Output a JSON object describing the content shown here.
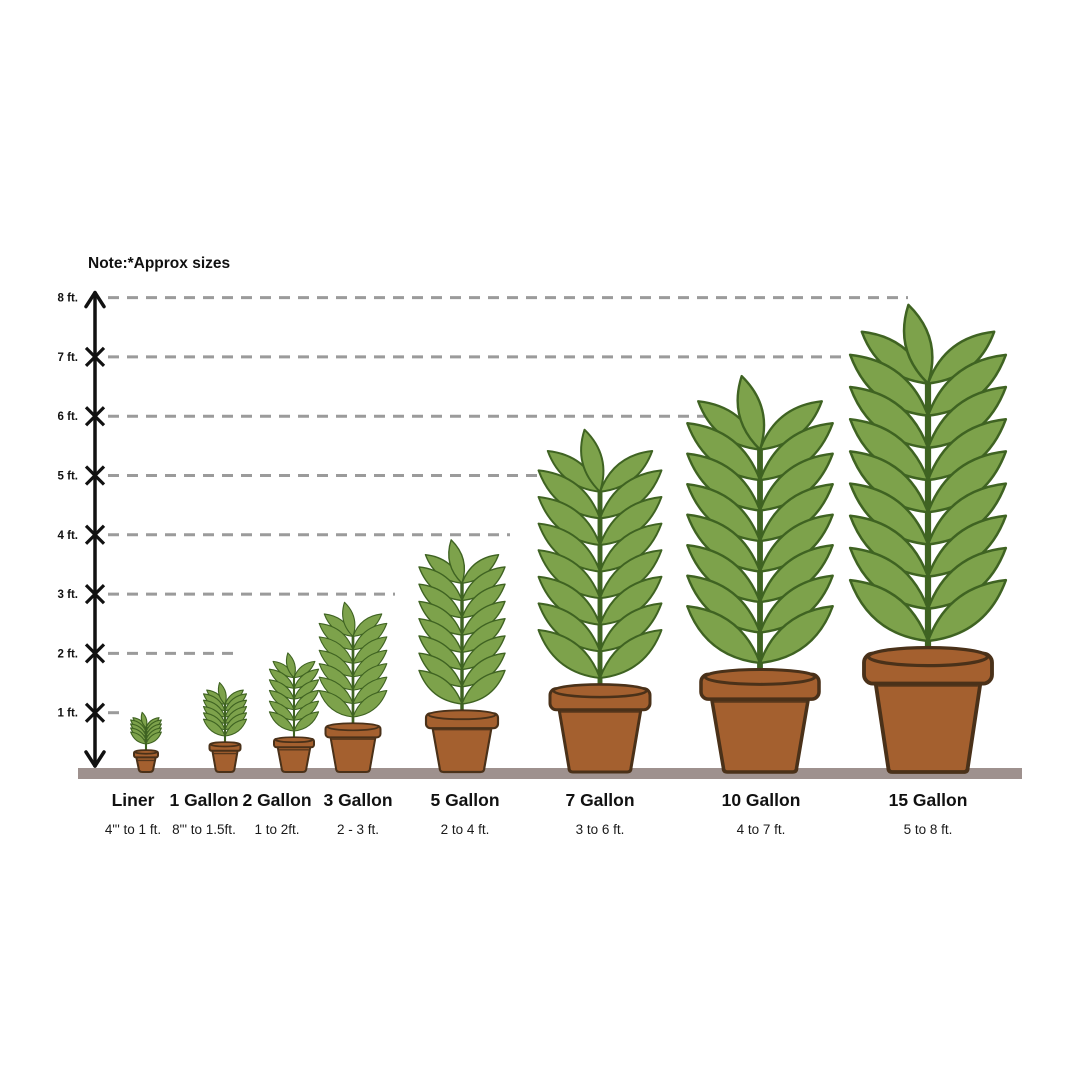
{
  "note": "Note:*Approx sizes",
  "chart_data": {
    "type": "bar",
    "variant": "plant-pot-size-pictogram",
    "title": "Note:*Approx sizes",
    "categories": [
      "Liner",
      "1 Gallon",
      "2 Gallon",
      "3 Gallon",
      "5 Gallon",
      "7 Gallon",
      "10 Gallon",
      "15 Gallon"
    ],
    "size_ranges": [
      "4\"' to 1 ft.",
      "8\"' to 1.5ft.",
      "1 to 2ft.",
      "2 - 3 ft.",
      "2 to 4 ft.",
      "3 to 6 ft.",
      "4 to 7 ft.",
      "5 to 8 ft."
    ],
    "depicted_height_ft": [
      1,
      1.5,
      2,
      2.85,
      3.9,
      5.75,
      6.65,
      7.85
    ],
    "yaxis": {
      "unit": "ft.",
      "range": [
        0,
        8
      ],
      "ticks": [
        1,
        2,
        3,
        4,
        5,
        6,
        7,
        8
      ],
      "tick_labels": [
        "1 ft.",
        "2 ft.",
        "3 ft.",
        "4 ft.",
        "5 ft.",
        "6 ft.",
        "7 ft.",
        "8 ft."
      ],
      "gridlines": "dashed"
    },
    "legend": "none"
  },
  "colors": {
    "leaf_fill": "#7da24b",
    "leaf_stroke": "#3f6322",
    "stem": "#3f6322",
    "pot_fill": "#a4602f",
    "pot_stroke": "#4a3119",
    "ground": "#9e918e",
    "dash": "#9b9b9b",
    "axis": "#111111",
    "text": "#111111",
    "background": "#ffffff"
  }
}
